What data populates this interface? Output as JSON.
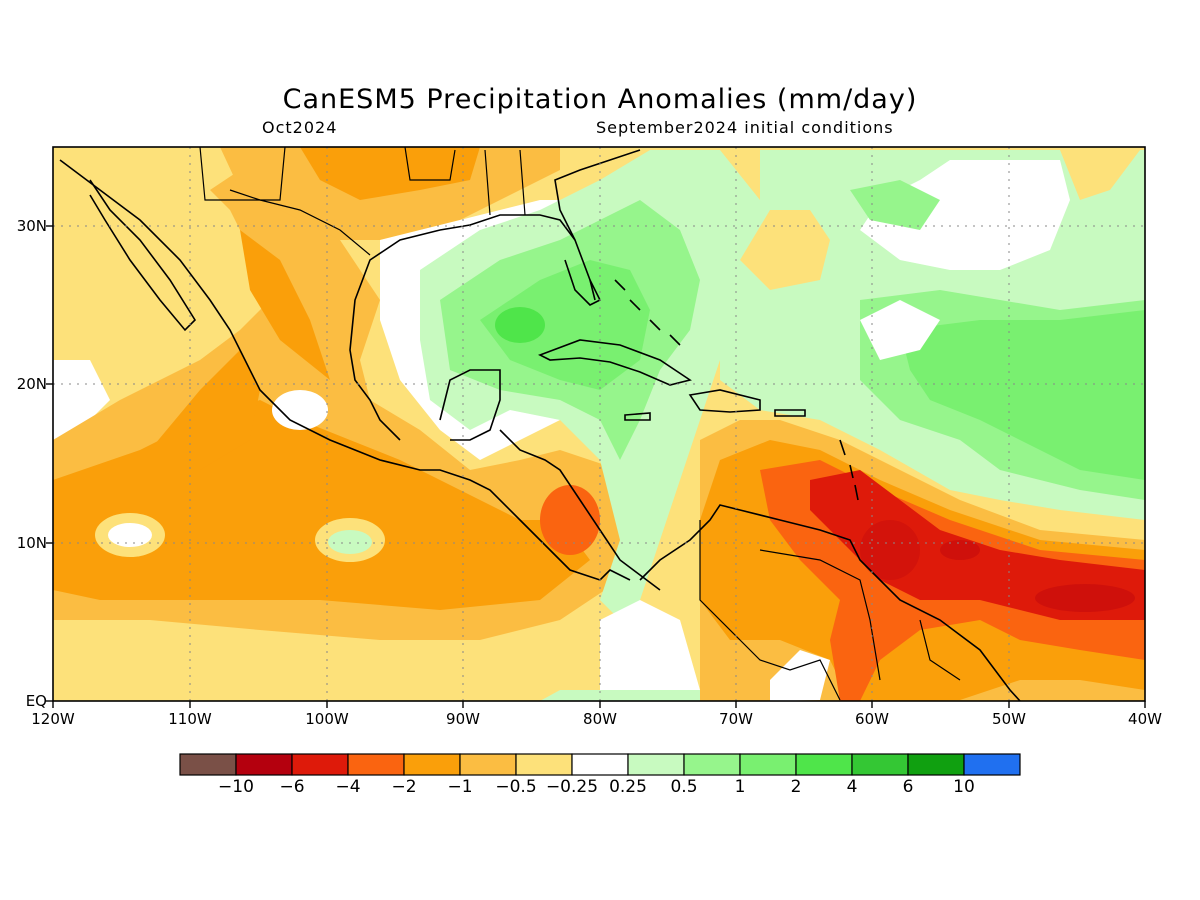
{
  "title": "CanESM5 Precipitation Anomalies (mm/day)",
  "valid_month": "Oct2024",
  "init_conditions": "September2024 initial conditions",
  "lat_labels": [
    "30N",
    "20N",
    "10N",
    "EQ"
  ],
  "lon_labels": [
    "120W",
    "110W",
    "100W",
    "90W",
    "80W",
    "70W",
    "60W",
    "50W",
    "40W"
  ],
  "colorbar": {
    "colors": [
      "#7a5047",
      "#b4000e",
      "#de1a0a",
      "#fa6410",
      "#fa9f0a",
      "#fbbd42",
      "#fde17a",
      "#ffffff",
      "#c8fac0",
      "#96f58c",
      "#79f070",
      "#4fe54a",
      "#34c734",
      "#10a010",
      "#2070f0"
    ],
    "labels": [
      "−10",
      "−6",
      "−4",
      "−2",
      "−1",
      "−0.5",
      "−0.25",
      "0.25",
      "0.5",
      "1",
      "2",
      "4",
      "6",
      "10"
    ]
  },
  "chart_data": {
    "type": "heatmap",
    "title": "CanESM5 Precipitation Anomalies (mm/day)",
    "lon_range": [
      -120,
      -40
    ],
    "lat_range": [
      0,
      35
    ],
    "grid": true,
    "field_summary": [
      {
        "region": "Gulf of Mexico / Florida / Bahamas / Cuba",
        "anomaly": "0.5 to 2"
      },
      {
        "region": "Central Atlantic 15N-25N",
        "anomaly": "0.5 to 2"
      },
      {
        "region": "Eastern Pacific off Mexico",
        "anomaly": "-1 to -2"
      },
      {
        "region": "Northern South America / Guianas",
        "anomaly": "-2 to -6"
      },
      {
        "region": "Tropical Atlantic 5N-10N",
        "anomaly": "-4 to -6"
      },
      {
        "region": "Western Caribbean",
        "anomaly": "0.25 to 1"
      }
    ]
  }
}
